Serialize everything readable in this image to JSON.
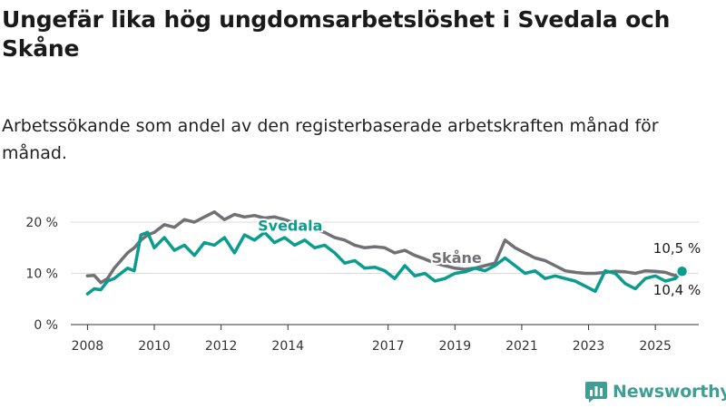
{
  "title": "Ungefär lika hög ungdomsarbetslöshet i Svedala och Skåne",
  "subtitle": "Arbetssökande som andel av den registerbaserade arbetskraften månad för månad.",
  "brand": {
    "name": "Newsworthy",
    "color": "#3f9e93"
  },
  "colors": {
    "svedala": "#0a9d8f",
    "skane": "#717075",
    "grid": "#dcdcdc",
    "axis": "#333333"
  },
  "chart_data": {
    "type": "line",
    "xlim": [
      2007.5,
      2026.3
    ],
    "ylim": [
      0,
      22
    ],
    "y_ticks": [
      {
        "value": 0,
        "label": "0 %"
      },
      {
        "value": 10,
        "label": "10 %"
      },
      {
        "value": 20,
        "label": "20 %"
      }
    ],
    "x_ticks": [
      {
        "value": 2008,
        "label": "2008"
      },
      {
        "value": 2010,
        "label": "2010"
      },
      {
        "value": 2012,
        "label": "2012"
      },
      {
        "value": 2014,
        "label": "2014"
      },
      {
        "value": 2017,
        "label": "2017"
      },
      {
        "value": 2019,
        "label": "2019"
      },
      {
        "value": 2021,
        "label": "2021"
      },
      {
        "value": 2023,
        "label": "2023"
      },
      {
        "value": 2025,
        "label": "2025"
      }
    ],
    "grid": true,
    "series": [
      {
        "name": "Skåne",
        "key": "skane",
        "x": [
          2008.0,
          2008.2,
          2008.4,
          2008.6,
          2008.8,
          2009.0,
          2009.2,
          2009.4,
          2009.6,
          2009.8,
          2010.0,
          2010.3,
          2010.6,
          2010.9,
          2011.2,
          2011.5,
          2011.8,
          2012.1,
          2012.4,
          2012.7,
          2013.0,
          2013.3,
          2013.6,
          2013.9,
          2014.2,
          2014.5,
          2014.8,
          2015.1,
          2015.4,
          2015.7,
          2016.0,
          2016.3,
          2016.6,
          2016.9,
          2017.2,
          2017.5,
          2017.8,
          2018.1,
          2018.4,
          2018.7,
          2019.0,
          2019.3,
          2019.6,
          2019.9,
          2020.2,
          2020.5,
          2020.8,
          2021.1,
          2021.4,
          2021.7,
          2022.0,
          2022.3,
          2022.6,
          2022.9,
          2023.2,
          2023.5,
          2023.8,
          2024.1,
          2024.4,
          2024.7,
          2025.0,
          2025.3,
          2025.6,
          2025.8
        ],
        "y": [
          9.5,
          9.6,
          8.2,
          9.0,
          11.0,
          12.5,
          14.0,
          15.0,
          16.5,
          17.5,
          18.0,
          19.5,
          19.0,
          20.5,
          20.0,
          21.0,
          22.0,
          20.5,
          21.5,
          21.0,
          21.3,
          20.8,
          21.0,
          20.5,
          19.8,
          19.5,
          18.5,
          18.0,
          17.0,
          16.5,
          15.5,
          15.0,
          15.2,
          15.0,
          14.0,
          14.5,
          13.5,
          12.8,
          12.0,
          11.5,
          11.0,
          10.8,
          11.0,
          11.5,
          12.0,
          16.5,
          15.0,
          14.0,
          13.0,
          12.5,
          11.5,
          10.5,
          10.2,
          10.0,
          10.0,
          10.2,
          10.4,
          10.3,
          10.0,
          10.5,
          10.4,
          10.2,
          9.5,
          10.5
        ]
      },
      {
        "name": "Svedala",
        "key": "svedala",
        "x": [
          2008.0,
          2008.2,
          2008.4,
          2008.6,
          2008.8,
          2009.0,
          2009.2,
          2009.4,
          2009.6,
          2009.8,
          2010.0,
          2010.3,
          2010.6,
          2010.9,
          2011.2,
          2011.5,
          2011.8,
          2012.1,
          2012.4,
          2012.7,
          2013.0,
          2013.3,
          2013.6,
          2013.9,
          2014.2,
          2014.5,
          2014.8,
          2015.1,
          2015.4,
          2015.7,
          2016.0,
          2016.3,
          2016.6,
          2016.9,
          2017.2,
          2017.5,
          2017.8,
          2018.1,
          2018.4,
          2018.7,
          2019.0,
          2019.3,
          2019.6,
          2019.9,
          2020.2,
          2020.5,
          2020.8,
          2021.1,
          2021.4,
          2021.7,
          2022.0,
          2022.3,
          2022.6,
          2022.9,
          2023.2,
          2023.5,
          2023.8,
          2024.1,
          2024.4,
          2024.7,
          2025.0,
          2025.3,
          2025.6,
          2025.8
        ],
        "y": [
          6.0,
          7.0,
          6.8,
          8.5,
          9.0,
          10.0,
          11.0,
          10.5,
          17.5,
          18.0,
          15.0,
          17.0,
          14.5,
          15.5,
          13.5,
          16.0,
          15.5,
          17.0,
          14.0,
          17.5,
          16.5,
          18.0,
          16.0,
          17.0,
          15.5,
          16.5,
          15.0,
          15.5,
          14.0,
          12.0,
          12.5,
          11.0,
          11.2,
          10.5,
          9.0,
          11.5,
          9.5,
          10.0,
          8.5,
          9.0,
          10.0,
          10.3,
          11.0,
          10.5,
          11.5,
          13.0,
          11.5,
          10.0,
          10.5,
          9.0,
          9.5,
          9.0,
          8.5,
          7.5,
          6.5,
          10.5,
          10.0,
          8.0,
          7.0,
          9.0,
          9.5,
          8.5,
          9.0,
          10.4
        ]
      }
    ],
    "annotations": [
      {
        "text": "Svedala",
        "series": "svedala"
      },
      {
        "text": "Skåne",
        "series": "skane"
      },
      {
        "text": "10,5 %",
        "series": "skane",
        "endpoint": true
      },
      {
        "text": "10,4 %",
        "series": "svedala",
        "endpoint": true
      }
    ]
  }
}
